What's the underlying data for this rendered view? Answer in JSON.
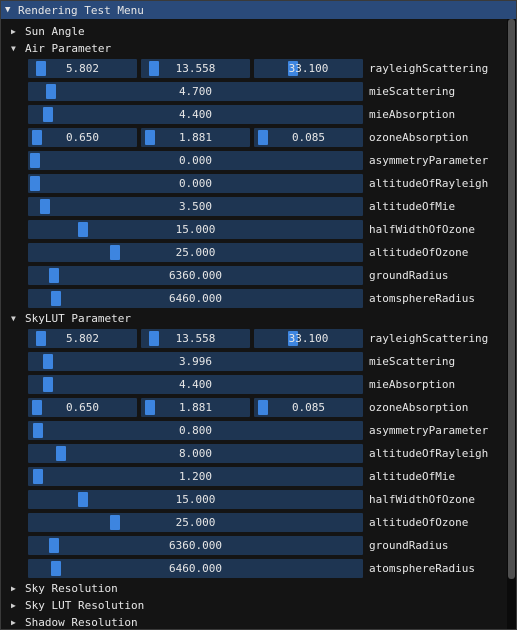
{
  "window": {
    "title": "Rendering Test Menu"
  },
  "sections": [
    {
      "label": "Sun Angle",
      "open": false
    },
    {
      "label": "Air Parameter",
      "open": true,
      "params": [
        {
          "name": "rayleighScattering",
          "values": [
            "5.802",
            "13.558",
            "33.100"
          ],
          "fill": [
            0.06,
            0.06,
            0.34
          ]
        },
        {
          "name": "mieScattering",
          "values": [
            "4.700"
          ],
          "fill": [
            0.05
          ]
        },
        {
          "name": "mieAbsorption",
          "values": [
            "4.400"
          ],
          "fill": [
            0.04
          ]
        },
        {
          "name": "ozoneAbsorption",
          "values": [
            "0.650",
            "1.881",
            "0.085"
          ],
          "fill": [
            0.02,
            0.02,
            0.02
          ]
        },
        {
          "name": "asymmetryParameter",
          "values": [
            "0.000"
          ],
          "fill": [
            0.0
          ]
        },
        {
          "name": "altitudeOfRayleigh",
          "values": [
            "0.000"
          ],
          "fill": [
            0.0
          ]
        },
        {
          "name": "altitudeOfMie",
          "values": [
            "3.500"
          ],
          "fill": [
            0.03
          ]
        },
        {
          "name": "halfWidthOfOzone",
          "values": [
            "15.000"
          ],
          "fill": [
            0.15
          ]
        },
        {
          "name": "altitudeOfOzone",
          "values": [
            "25.000"
          ],
          "fill": [
            0.25
          ]
        },
        {
          "name": "groundRadius",
          "values": [
            "6360.000"
          ],
          "fill": [
            0.06
          ]
        },
        {
          "name": "atomsphereRadius",
          "values": [
            "6460.000"
          ],
          "fill": [
            0.065
          ]
        }
      ]
    },
    {
      "label": "SkyLUT Parameter",
      "open": true,
      "params": [
        {
          "name": "rayleighScattering",
          "values": [
            "5.802",
            "13.558",
            "33.100"
          ],
          "fill": [
            0.06,
            0.06,
            0.34
          ]
        },
        {
          "name": "mieScattering",
          "values": [
            "3.996"
          ],
          "fill": [
            0.04
          ]
        },
        {
          "name": "mieAbsorption",
          "values": [
            "4.400"
          ],
          "fill": [
            0.04
          ]
        },
        {
          "name": "ozoneAbsorption",
          "values": [
            "0.650",
            "1.881",
            "0.085"
          ],
          "fill": [
            0.02,
            0.02,
            0.02
          ]
        },
        {
          "name": "asymmetryParameter",
          "values": [
            "0.800"
          ],
          "fill": [
            0.01
          ]
        },
        {
          "name": "altitudeOfRayleigh",
          "values": [
            "8.000"
          ],
          "fill": [
            0.08
          ]
        },
        {
          "name": "altitudeOfMie",
          "values": [
            "1.200"
          ],
          "fill": [
            0.01
          ]
        },
        {
          "name": "halfWidthOfOzone",
          "values": [
            "15.000"
          ],
          "fill": [
            0.15
          ]
        },
        {
          "name": "altitudeOfOzone",
          "values": [
            "25.000"
          ],
          "fill": [
            0.25
          ]
        },
        {
          "name": "groundRadius",
          "values": [
            "6360.000"
          ],
          "fill": [
            0.06
          ]
        },
        {
          "name": "atomsphereRadius",
          "values": [
            "6460.000"
          ],
          "fill": [
            0.065
          ]
        }
      ]
    },
    {
      "label": "Sky Resolution",
      "open": false
    },
    {
      "label": "Sky LUT Resolution",
      "open": false
    },
    {
      "label": "Shadow Resolution",
      "open": false
    }
  ],
  "icons": {
    "expanded": "triangle-down-icon",
    "collapsed": "triangle-right-icon"
  },
  "colors": {
    "title_bg": "#2a4a7a",
    "frame_bg": "#1e3552",
    "grab": "#3d85e0"
  }
}
